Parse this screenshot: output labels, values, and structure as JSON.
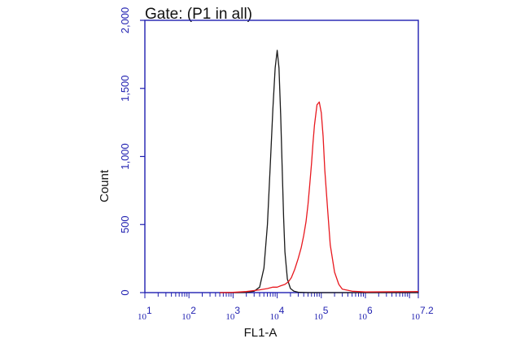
{
  "chart_data": {
    "type": "line",
    "title": "Gate: (P1 in all)",
    "xlabel": "FL1-A",
    "ylabel": "Count",
    "x_scale": "log",
    "xlim": [
      10,
      15848931.92
    ],
    "ylim": [
      0,
      2000
    ],
    "y_ticks": [
      0,
      500,
      1000,
      1500,
      2000
    ],
    "y_tick_labels": [
      "0",
      "500",
      "1,000",
      "1,500",
      "2,000"
    ],
    "x_ticks": [
      {
        "base": "10",
        "exp": "1"
      },
      {
        "base": "10",
        "exp": "2"
      },
      {
        "base": "10",
        "exp": "3"
      },
      {
        "base": "10",
        "exp": "4"
      },
      {
        "base": "10",
        "exp": "5"
      },
      {
        "base": "10",
        "exp": "6"
      },
      {
        "base": "10",
        "exp": "7.2"
      }
    ],
    "grid": false,
    "legend": "none",
    "series": [
      {
        "color": "#1a1a1a",
        "x": [
          500,
          1000,
          2000,
          3000,
          4000,
          5000,
          6000,
          7000,
          8000,
          9000,
          10000,
          11000,
          12000,
          13000,
          14000,
          15000,
          17000,
          20000,
          24000,
          30000,
          50000,
          1000000,
          15848931
        ],
        "y": [
          0,
          0,
          2,
          10,
          40,
          180,
          500,
          950,
          1350,
          1650,
          1780,
          1650,
          1300,
          900,
          550,
          300,
          100,
          30,
          10,
          3,
          0,
          0,
          0
        ]
      },
      {
        "color": "#e8191f",
        "x": [
          500,
          1000,
          2000,
          4000,
          6000,
          8000,
          10000,
          12000,
          15000,
          18000,
          21000,
          25000,
          30000,
          35000,
          40000,
          45000,
          50000,
          55000,
          60000,
          65000,
          70000,
          80000,
          90000,
          100000,
          110000,
          120000,
          140000,
          160000,
          200000,
          250000,
          300000,
          500000,
          1000000,
          15848931
        ],
        "y": [
          0,
          2,
          8,
          20,
          30,
          40,
          40,
          50,
          60,
          80,
          110,
          170,
          250,
          330,
          420,
          520,
          650,
          800,
          950,
          1100,
          1230,
          1380,
          1400,
          1320,
          1150,
          900,
          600,
          350,
          150,
          60,
          25,
          10,
          5,
          8
        ]
      }
    ]
  }
}
